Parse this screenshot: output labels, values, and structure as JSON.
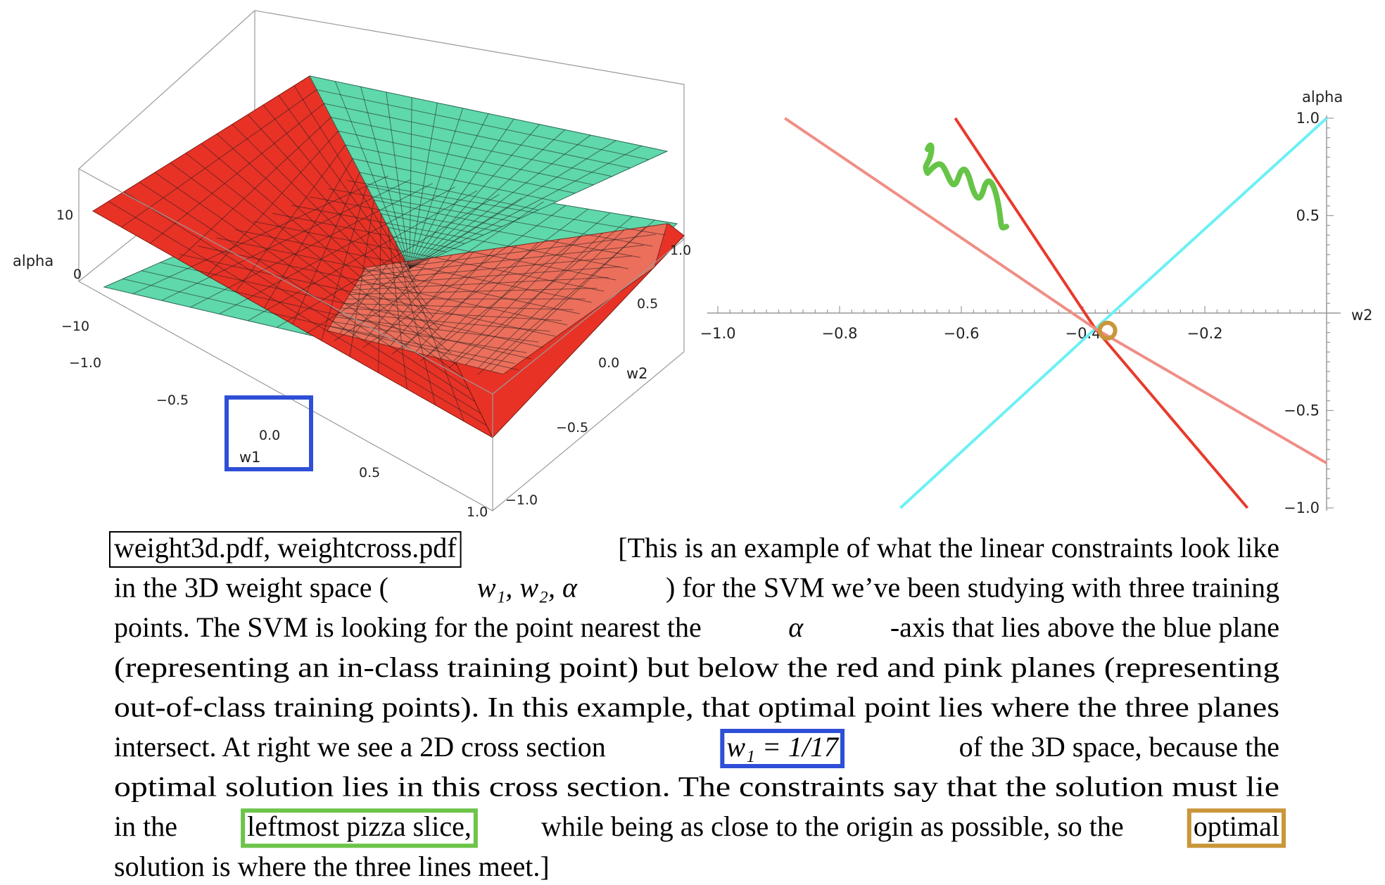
{
  "colors": {
    "teal_plane": "#5fd8ab",
    "red_plane": "#e83226",
    "pink_plane": "#ec6f5b",
    "cyan_line": "#6cf0f4",
    "red_line": "#e83a2c",
    "pink_line": "#ef8e85",
    "blue_box": "#2e4fd6",
    "green_box": "#6cc44a",
    "gold_box": "#c9963a",
    "scribble": "#66c446"
  },
  "plot3d": {
    "axis_z_label": "alpha",
    "axis_x_label": "w1",
    "axis_y_label": "w2",
    "z_ticks": [
      "10",
      "0",
      "−10"
    ],
    "x_ticks": [
      "−1.0",
      "−0.5",
      "0.0",
      "0.5",
      "1.0"
    ],
    "y_ticks": [
      "1.0",
      "0.5",
      "0.0",
      "−0.5",
      "−1.0"
    ],
    "annotation": "blue-box-around-w1-axis-label"
  },
  "chart_data": {
    "type": "line",
    "xlabel": "w2",
    "ylabel": "alpha",
    "xlim": [
      -1.0,
      0.0
    ],
    "ylim": [
      -1.0,
      1.0
    ],
    "x_ticks": [
      "−1.0",
      "−0.8",
      "−0.6",
      "−0.4",
      "−0.2"
    ],
    "y_ticks": [
      "1.0",
      "0.5",
      "−0.5",
      "−1.0"
    ],
    "series": [
      {
        "color_key": "cyan_line",
        "points": [
          [
            -0.7,
            -1.0
          ],
          [
            -0.38,
            -0.08
          ],
          [
            0.0,
            1.0
          ]
        ]
      },
      {
        "color_key": "red_line",
        "points": [
          [
            -0.61,
            1.0
          ],
          [
            -0.38,
            -0.08
          ],
          [
            -0.13,
            -1.0
          ]
        ]
      },
      {
        "color_key": "pink_line",
        "points": [
          [
            -0.89,
            1.0
          ],
          [
            -0.38,
            -0.08
          ],
          [
            0.0,
            -0.77
          ]
        ]
      }
    ],
    "highlight_point": [
      -0.36,
      -0.09
    ],
    "grid": false
  },
  "caption": {
    "lines": [
      [
        {
          "t": "weight3d.pdf, weightcross.pdf",
          "box": "black"
        },
        {
          "t": " [This is an example of what the linear constraints look like"
        }
      ],
      [
        {
          "t": "in the 3D weight space ("
        },
        {
          "t": "w₁, w₂, α",
          "math": true
        },
        {
          "t": ") for the SVM we’ve been studying with three training"
        }
      ],
      [
        {
          "t": "points.  The SVM is looking for the point nearest the "
        },
        {
          "t": "α",
          "math": true
        },
        {
          "t": "-axis that lies above the blue plane"
        }
      ],
      [
        {
          "t": "(representing an in-class training point) but below the red and pink planes (representing"
        }
      ],
      [
        {
          "t": "out-of-class training points). In this example, that optimal point lies where the three planes"
        }
      ],
      [
        {
          "t": "intersect.  At right we see a 2D cross section "
        },
        {
          "t": "w₁  =  1/17",
          "box": "blue",
          "math": true
        },
        {
          "t": " of the 3D space, because the"
        }
      ],
      [
        {
          "t": "optimal solution lies in this cross section.  The constraints say that the solution must lie"
        }
      ],
      [
        {
          "t": "in the "
        },
        {
          "t": "leftmost pizza slice,",
          "box": "green"
        },
        {
          "t": " while being as close to the origin as possible, so the "
        },
        {
          "t": "optimal",
          "box": "gold"
        }
      ],
      [
        {
          "t": "solution is where the three lines meet.]"
        }
      ]
    ]
  }
}
